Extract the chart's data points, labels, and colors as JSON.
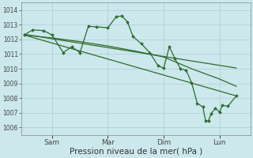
{
  "bg_color": "#cce8ec",
  "grid_color": "#aacdd4",
  "line_color": "#2d6b2d",
  "marker_color": "#2d6b2d",
  "xlabel": "Pression niveau de la mer( hPa )",
  "xlabel_fontsize": 7.5,
  "ylim": [
    1005.5,
    1014.5
  ],
  "yticks": [
    1006,
    1007,
    1008,
    1009,
    1010,
    1011,
    1012,
    1013,
    1014
  ],
  "xtick_labels": [
    "Sam",
    "Mar",
    "Dim",
    "Lun"
  ],
  "xtick_positions": [
    1,
    3,
    5,
    7
  ],
  "xlim": [
    -0.1,
    8.1
  ],
  "series1": [
    [
      0,
      1012.3
    ],
    [
      0.3,
      1012.65
    ],
    [
      0.7,
      1012.6
    ],
    [
      1.0,
      1012.3
    ],
    [
      1.4,
      1011.1
    ],
    [
      1.7,
      1011.5
    ],
    [
      2.0,
      1011.1
    ],
    [
      2.3,
      1012.9
    ],
    [
      2.6,
      1012.85
    ],
    [
      3.0,
      1012.8
    ],
    [
      3.3,
      1013.55
    ],
    [
      3.5,
      1013.6
    ],
    [
      3.7,
      1013.2
    ],
    [
      3.9,
      1012.2
    ],
    [
      4.2,
      1011.7
    ],
    [
      4.5,
      1011.1
    ],
    [
      4.8,
      1010.2
    ],
    [
      5.0,
      1010.05
    ],
    [
      5.2,
      1011.5
    ],
    [
      5.4,
      1010.7
    ],
    [
      5.6,
      1010.0
    ],
    [
      5.8,
      1009.9
    ],
    [
      6.0,
      1009.05
    ],
    [
      6.2,
      1007.65
    ],
    [
      6.4,
      1007.4
    ],
    [
      6.5,
      1006.45
    ],
    [
      6.6,
      1006.45
    ],
    [
      6.7,
      1006.95
    ],
    [
      6.85,
      1007.3
    ],
    [
      7.0,
      1007.05
    ],
    [
      7.1,
      1007.5
    ],
    [
      7.3,
      1007.45
    ],
    [
      7.6,
      1008.15
    ]
  ],
  "series2": [
    [
      0,
      1012.3
    ],
    [
      7.6,
      1008.15
    ]
  ],
  "series3": [
    [
      0,
      1012.3
    ],
    [
      1.0,
      1012.1
    ],
    [
      2.0,
      1011.85
    ],
    [
      3.0,
      1011.55
    ],
    [
      4.0,
      1011.2
    ],
    [
      5.0,
      1010.8
    ],
    [
      5.5,
      1010.4
    ],
    [
      6.0,
      1010.0
    ],
    [
      7.0,
      1009.3
    ],
    [
      7.6,
      1008.8
    ]
  ],
  "series4": [
    [
      0,
      1012.35
    ],
    [
      7.6,
      1010.05
    ]
  ]
}
